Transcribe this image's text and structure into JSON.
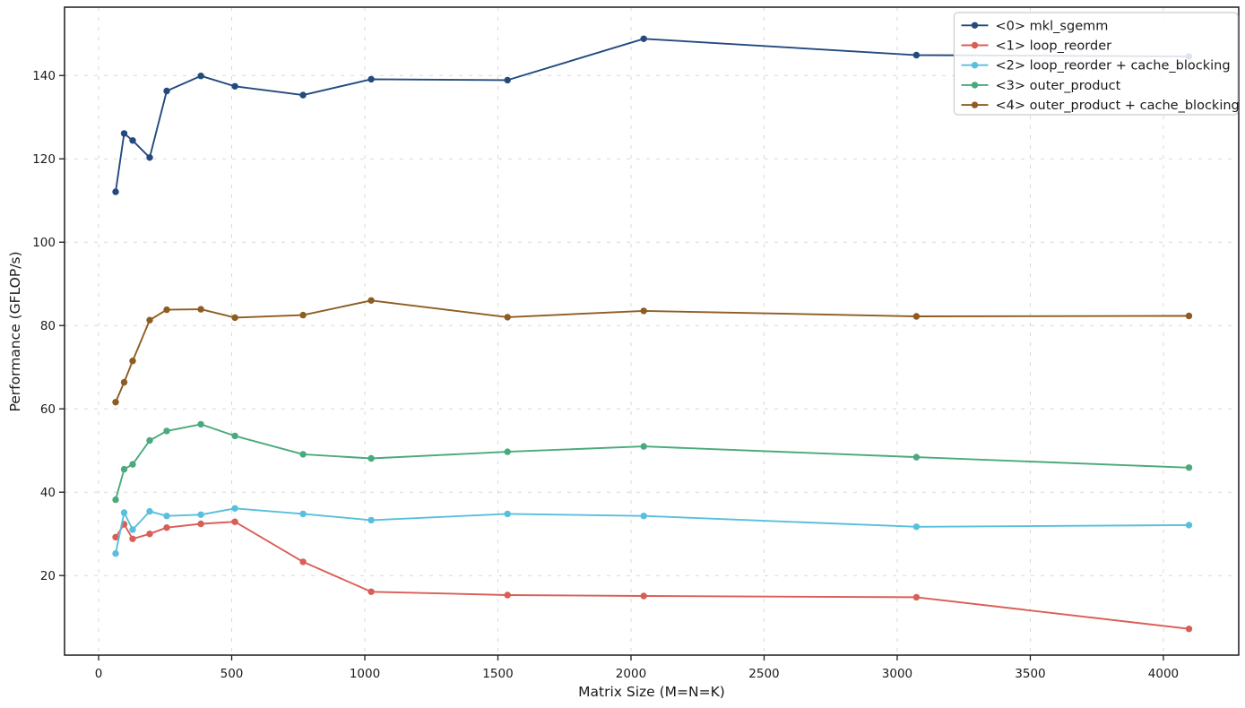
{
  "chart_data": {
    "type": "line",
    "title": "",
    "xlabel": "Matrix Size (M=N=K)",
    "ylabel": "Performance (GFLOP/s)",
    "x": [
      64,
      96,
      128,
      192,
      256,
      384,
      512,
      768,
      1024,
      1536,
      2048,
      3072,
      4096
    ],
    "series": [
      {
        "name": "<0> mkl_sgemm",
        "color": "#234a7d",
        "values": [
          112.1,
          126.1,
          124.4,
          120.3,
          136.3,
          139.9,
          137.4,
          135.3,
          139.1,
          138.9,
          148.8,
          144.9,
          144.6
        ]
      },
      {
        "name": "<1> loop_reorder",
        "color": "#d85f57",
        "values": [
          29.2,
          32.3,
          28.8,
          30.0,
          31.5,
          32.4,
          32.9,
          23.3,
          16.1,
          15.3,
          15.1,
          14.8,
          7.2
        ]
      },
      {
        "name": "<2> loop_reorder + cache_blocking",
        "color": "#58bfdc",
        "values": [
          25.3,
          35.1,
          31.0,
          35.4,
          34.3,
          34.6,
          36.1,
          34.8,
          33.3,
          34.8,
          34.3,
          31.7,
          32.1
        ]
      },
      {
        "name": "<3> outer_product",
        "color": "#4aaa7c",
        "values": [
          38.2,
          45.5,
          46.7,
          52.4,
          54.7,
          56.3,
          53.5,
          49.1,
          48.1,
          49.7,
          51.0,
          48.4,
          45.9
        ]
      },
      {
        "name": "<4> outer_product + cache_blocking",
        "color": "#8e5c22",
        "values": [
          61.6,
          66.4,
          71.5,
          81.3,
          83.8,
          83.9,
          81.9,
          82.5,
          86.0,
          82.0,
          83.5,
          82.2,
          82.3
        ]
      }
    ],
    "xticks": [
      0,
      500,
      1000,
      1500,
      2000,
      2500,
      3000,
      3500,
      4000
    ],
    "yticks": [
      20,
      40,
      60,
      80,
      100,
      120,
      140
    ],
    "xlim": [
      -128,
      4283
    ],
    "ylim": [
      0.9,
      156.4
    ],
    "grid": true,
    "grid_color": "#d8d8d8",
    "axis_color": "#1a1a1a",
    "legend_position": "upper right",
    "legend_border_color": "#cccccc",
    "background_color": "#ffffff"
  }
}
